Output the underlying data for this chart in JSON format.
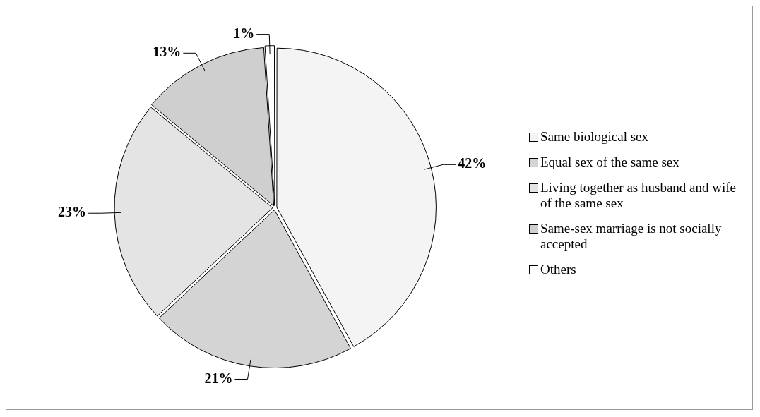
{
  "chart_data": {
    "type": "pie",
    "categories": [
      "Same biological sex",
      "Equal sex of the same sex",
      "Living together as husband and wife of the same sex",
      "Same-sex marriage is not socially accepted",
      "Others"
    ],
    "values": [
      42,
      21,
      23,
      13,
      1
    ],
    "colors": [
      "#f4f4f4",
      "#d4d4d4",
      "#e4e4e4",
      "#cfcfcf",
      "#ffffff"
    ],
    "value_labels": [
      "42%",
      "21%",
      "23%",
      "13%",
      "1%"
    ],
    "legend": "right"
  }
}
